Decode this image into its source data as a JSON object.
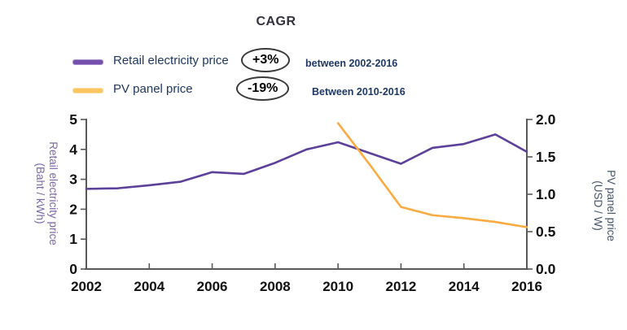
{
  "header": {
    "title": "CAGR",
    "legend": [
      {
        "label": "Retail electricity price",
        "badge": "+3%",
        "period": "between 2002-2016",
        "swatch_color": "#7450ac"
      },
      {
        "label": "PV panel price",
        "badge": "-19%",
        "period": "Between 2010-2016",
        "swatch_color": "#fbc661"
      }
    ]
  },
  "colors": {
    "retail_line": "#5c4099",
    "pv_line": "#fbab41",
    "axis": "#595959",
    "tick_text": "#111111",
    "legend_text": "#1f3864",
    "left_axis_title": "#7b68a6",
    "right_axis_title": "#44546a",
    "badge_border": "#3a3a3a"
  },
  "chart_data": {
    "type": "line",
    "title": "CAGR",
    "grid": false,
    "legend_position": "top",
    "x_axis": {
      "ticks": [
        "2002",
        "2004",
        "2006",
        "2008",
        "2010",
        "2012",
        "2014",
        "2016"
      ],
      "range": [
        2002,
        2016
      ]
    },
    "left_axis": {
      "label_line1": "Retail electricity price",
      "label_line2": "(Baht / kWh)",
      "ticks": [
        "0",
        "1",
        "2",
        "3",
        "4",
        "5"
      ],
      "range": [
        0,
        5
      ]
    },
    "right_axis": {
      "label_line1": "PV panel price",
      "label_line2": "(USD / W)",
      "ticks": [
        "0.0",
        "0.5",
        "1.0",
        "1.5",
        "2.0"
      ],
      "range": [
        0,
        2
      ]
    },
    "series": [
      {
        "name": "Retail electricity price",
        "axis": "left",
        "color": "#5c4099",
        "x": [
          2002,
          2003,
          2004,
          2005,
          2006,
          2007,
          2008,
          2009,
          2010,
          2011,
          2012,
          2013,
          2014,
          2015,
          2016
        ],
        "values": [
          2.68,
          2.7,
          2.8,
          2.92,
          3.24,
          3.18,
          3.55,
          4.0,
          4.24,
          3.88,
          3.52,
          4.05,
          4.18,
          4.5,
          3.92
        ]
      },
      {
        "name": "PV panel price",
        "axis": "right",
        "color": "#fbab41",
        "x": [
          2010,
          2011,
          2012,
          2013,
          2014,
          2015,
          2016
        ],
        "values": [
          1.95,
          1.4,
          0.83,
          0.72,
          0.68,
          0.63,
          0.56
        ]
      }
    ]
  }
}
